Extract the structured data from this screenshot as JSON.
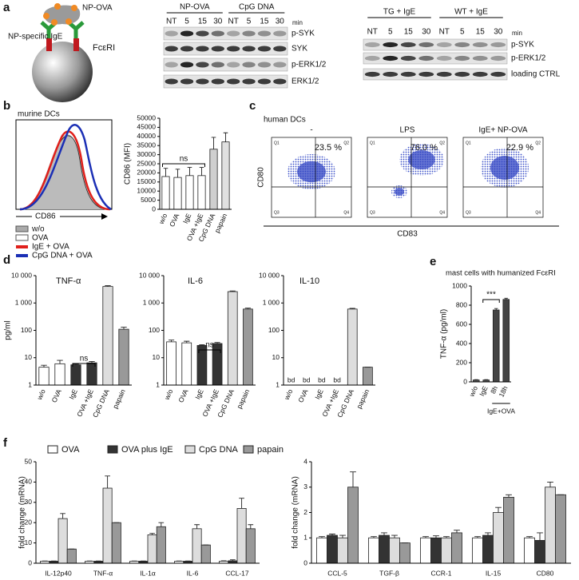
{
  "panel_a": {
    "letter": "a",
    "diagram": {
      "antigen": "NP-OVA",
      "antibody": "NP-specific IgE",
      "receptor": "FcεRI"
    },
    "blot1": {
      "groups": [
        "NP-OVA",
        "CpG DNA"
      ],
      "lanes": [
        "NT",
        "5",
        "15",
        "30",
        "NT",
        "5",
        "15",
        "30"
      ],
      "unit": "min",
      "rows": [
        "p-SYK",
        "SYK",
        "p-ERK1/2",
        "ERK1/2"
      ]
    },
    "blot2": {
      "groups": [
        "TG + IgE",
        "WT + IgE"
      ],
      "lanes": [
        "NT",
        "5",
        "15",
        "30",
        "NT",
        "5",
        "15",
        "30"
      ],
      "unit": "min",
      "rows": [
        "p-SYK",
        "p-ERK1/2",
        "loading CTRL"
      ]
    }
  },
  "panel_b": {
    "letter": "b",
    "title": "murine DCs",
    "hist_axis": "CD86",
    "legend": [
      {
        "name": "w/o",
        "color": "#aaaaaa"
      },
      {
        "name": "OVA",
        "color": "#ffffff"
      },
      {
        "name": "IgE + OVA",
        "color": "#e0201b"
      },
      {
        "name": "CpG DNA + OVA",
        "color": "#1b2fb5"
      }
    ]
  },
  "panel_c": {
    "letter": "c",
    "title": "human DCs",
    "plots": [
      {
        "title": "-",
        "percent": "23.5 %"
      },
      {
        "title": "LPS",
        "percent": "76.0 %"
      },
      {
        "title": "IgE+ NP-OVA",
        "percent": "22.9 %"
      }
    ],
    "quadrants": [
      "Q1",
      "Q2",
      "Q3",
      "Q4"
    ],
    "ylabel": "CD80",
    "xlabel": "CD83"
  },
  "panel_d": {
    "letter": "d"
  },
  "panel_e": {
    "letter": "e"
  },
  "panel_f": {
    "letter": "f"
  },
  "chart_data": [
    {
      "type": "bar",
      "ylabel": "CD86 (MFI)",
      "categories": [
        "w/o",
        "OVA",
        "IgE",
        "OVA +IgE",
        "CpG DNA",
        "papain"
      ],
      "values": [
        18000,
        17500,
        18500,
        18500,
        33000,
        37000
      ],
      "errors": [
        4500,
        4500,
        4500,
        4500,
        6500,
        5000
      ],
      "colors": [
        "#ffffff",
        "#ffffff",
        "#ffffff",
        "#ffffff",
        "#cfcfcf",
        "#e0e0e0"
      ],
      "ylim": [
        0,
        50000
      ],
      "yticks": [
        0,
        5000,
        10000,
        15000,
        20000,
        25000,
        30000,
        35000,
        40000,
        45000,
        50000
      ],
      "annotation": "ns"
    },
    {
      "type": "bar",
      "title": "TNF-α",
      "ylabel": "pg/ml",
      "log_scale": true,
      "categories": [
        "w/o",
        "OVA",
        "IgE",
        "OVA +IgE",
        "CpG DNA",
        "papain"
      ],
      "values": [
        4.5,
        6,
        5.5,
        6.5,
        4000,
        110
      ],
      "errors": [
        0.8,
        2,
        0.3,
        0.8,
        300,
        20
      ],
      "colors": [
        "#ffffff",
        "#ffffff",
        "#333333",
        "#333333",
        "#dddddd",
        "#999999"
      ],
      "ylim": [
        1,
        10000
      ],
      "yticks": [
        1,
        10,
        100,
        {
          "value": 1000,
          "label": "1 000"
        },
        {
          "value": 10000,
          "label": "10 000"
        }
      ],
      "annotation": "ns"
    },
    {
      "type": "bar",
      "title": "IL-6",
      "log_scale": true,
      "categories": [
        "w/o",
        "OVA",
        "IgE",
        "OVA +IgE",
        "CpG DNA",
        "papain"
      ],
      "values": [
        38,
        35,
        28,
        33,
        2600,
        600
      ],
      "errors": [
        6,
        5,
        2,
        3,
        150,
        50
      ],
      "colors": [
        "#ffffff",
        "#ffffff",
        "#333333",
        "#333333",
        "#dddddd",
        "#999999"
      ],
      "ylim": [
        1,
        10000
      ],
      "yticks": [
        1,
        10,
        100,
        {
          "value": 1000,
          "label": "1 000"
        },
        {
          "value": 10000,
          "label": "10 000"
        }
      ],
      "annotation": "ns"
    },
    {
      "type": "bar",
      "title": "IL-10",
      "log_scale": true,
      "categories": [
        "w/o",
        "OVA",
        "IgE",
        "OVA +IgE",
        "CpG DNA",
        "papain"
      ],
      "values": [
        null,
        null,
        null,
        null,
        600,
        4.5
      ],
      "value_labels": [
        "bd",
        "bd",
        "bd",
        "bd",
        null,
        null
      ],
      "errors": [
        null,
        null,
        null,
        null,
        40,
        0
      ],
      "colors": [
        "#ffffff",
        "#ffffff",
        "#333333",
        "#333333",
        "#dddddd",
        "#999999"
      ],
      "ylim": [
        1,
        10000
      ],
      "yticks": [
        1,
        10,
        100,
        {
          "value": 1000,
          "label": "1 000"
        },
        {
          "value": 10000,
          "label": "10 000"
        }
      ]
    },
    {
      "type": "bar",
      "title": "mast cells with humanized FcεRI",
      "ylabel": "TNF-α (pg/ml)",
      "categories": [
        "w/o",
        "IgE",
        "8h",
        "18h"
      ],
      "group_label": "IgE+OVA",
      "values": [
        20,
        20,
        750,
        860
      ],
      "errors": [
        3,
        3,
        15,
        12
      ],
      "colors": [
        "#555555",
        "#555555",
        "#444444",
        "#444444"
      ],
      "ylim": [
        0,
        1000
      ],
      "yticks": [
        0,
        200,
        400,
        600,
        800,
        1000
      ],
      "annotation": "***"
    },
    {
      "type": "bar",
      "ylabel": "fold change (mRNA)",
      "categories": [
        "IL-12p40",
        "TNF-α",
        "IL-1α",
        "IL-6",
        "CCL-17"
      ],
      "series": [
        {
          "name": "OVA",
          "color": "#ffffff",
          "values": [
            1,
            1,
            1,
            1,
            1
          ],
          "errors": [
            0.1,
            0.1,
            0.1,
            0.1,
            0.2
          ]
        },
        {
          "name": "OVA plus IgE",
          "color": "#333333",
          "values": [
            1,
            1,
            1,
            1,
            1.2
          ],
          "errors": [
            0.1,
            0.1,
            0.1,
            0.1,
            0.5
          ]
        },
        {
          "name": "CpG DNA",
          "color": "#dddddd",
          "values": [
            22,
            37,
            14,
            17,
            27
          ],
          "errors": [
            2.5,
            6,
            0.7,
            2,
            5
          ]
        },
        {
          "name": "papain",
          "color": "#999999",
          "values": [
            7,
            20,
            18,
            9,
            17
          ],
          "errors": [
            0,
            0,
            2,
            0,
            2
          ]
        }
      ],
      "ylim": [
        0,
        50
      ],
      "yticks": [
        0,
        10,
        20,
        30,
        40,
        50
      ]
    },
    {
      "type": "bar",
      "ylabel": "fold change (mRNA)",
      "categories": [
        "CCL-5",
        "TGF-β",
        "CCR-1",
        "IL-15",
        "CD80"
      ],
      "series": [
        {
          "color": "#ffffff",
          "values": [
            1,
            1,
            1,
            1,
            1
          ],
          "errors": [
            0.05,
            0.05,
            0.05,
            0.05,
            0.05
          ]
        },
        {
          "color": "#333333",
          "values": [
            1.1,
            1.1,
            1.0,
            1.1,
            0.9
          ],
          "errors": [
            0.05,
            0.1,
            0.08,
            0.1,
            0.3
          ]
        },
        {
          "color": "#dddddd",
          "values": [
            1.0,
            1.0,
            1.0,
            2.0,
            3.0
          ],
          "errors": [
            0.1,
            0.1,
            0.05,
            0.2,
            0.2
          ]
        },
        {
          "color": "#999999",
          "values": [
            3.0,
            0.8,
            1.2,
            2.6,
            2.7
          ],
          "errors": [
            0.6,
            0,
            0.1,
            0.1,
            0
          ]
        }
      ],
      "ylim": [
        0,
        4
      ],
      "yticks": [
        0,
        1,
        2,
        3,
        4
      ]
    }
  ]
}
